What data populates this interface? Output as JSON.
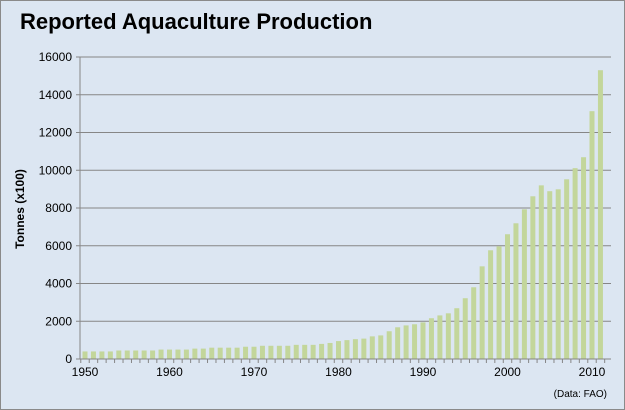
{
  "chart_data": {
    "type": "bar",
    "title": "Reported Aquaculture Production",
    "ylabel": "Tonnes (x100)",
    "xlabel": "",
    "source_note": "(Data: FAO)",
    "ylim": [
      0,
      16000
    ],
    "yticks": [
      0,
      2000,
      4000,
      6000,
      8000,
      10000,
      12000,
      14000,
      16000
    ],
    "xtick_labels": [
      "1950",
      "1960",
      "1970",
      "1980",
      "1990",
      "2000",
      "2010"
    ],
    "grid": "horizontal",
    "colors": {
      "bar": "#c3d69b",
      "background": "#dce6f2",
      "grid": "#868686"
    },
    "x": [
      1950,
      1951,
      1952,
      1953,
      1954,
      1955,
      1956,
      1957,
      1958,
      1959,
      1960,
      1961,
      1962,
      1963,
      1964,
      1965,
      1966,
      1967,
      1968,
      1969,
      1970,
      1971,
      1972,
      1973,
      1974,
      1975,
      1976,
      1977,
      1978,
      1979,
      1980,
      1981,
      1982,
      1983,
      1984,
      1985,
      1986,
      1987,
      1988,
      1989,
      1990,
      1991,
      1992,
      1993,
      1994,
      1995,
      1996,
      1997,
      1998,
      1999,
      2000,
      2001,
      2002,
      2003,
      2004,
      2005,
      2006,
      2007,
      2008,
      2009,
      2010,
      2011
    ],
    "values": [
      400,
      400,
      400,
      400,
      450,
      450,
      450,
      450,
      450,
      500,
      500,
      500,
      500,
      550,
      550,
      600,
      600,
      600,
      600,
      650,
      650,
      700,
      700,
      700,
      700,
      750,
      750,
      750,
      800,
      850,
      950,
      1000,
      1050,
      1080,
      1200,
      1250,
      1470,
      1680,
      1780,
      1840,
      1940,
      2160,
      2310,
      2420,
      2690,
      3220,
      3800,
      4910,
      5760,
      5970,
      6610,
      7190,
      7930,
      8620,
      9200,
      8890,
      8990,
      9520,
      10110,
      10690,
      13130,
      15300
    ]
  }
}
